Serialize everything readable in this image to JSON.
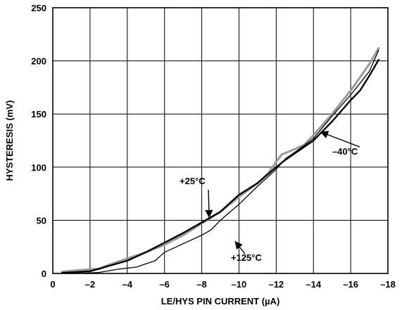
{
  "chart_data": {
    "type": "line",
    "xlabel": "LE/HYS PIN CURRENT (µA)",
    "ylabel": "HYSTERESIS (mV)",
    "xlim": [
      0,
      -18
    ],
    "ylim": [
      0,
      250
    ],
    "x_ticks": [
      0,
      -2,
      -4,
      -6,
      -8,
      -10,
      -12,
      -14,
      -16,
      -18
    ],
    "x_tick_labels": [
      "0",
      "–2",
      "–4",
      "–6",
      "–8",
      "–10",
      "–12",
      "–14",
      "–16",
      "–18"
    ],
    "y_ticks": [
      0,
      50,
      100,
      150,
      200,
      250
    ],
    "y_tick_labels": [
      "0",
      "50",
      "100",
      "150",
      "200",
      "250"
    ],
    "grid": true,
    "series": [
      {
        "name": "+25°C",
        "color": "#999999",
        "points": [
          [
            -0.5,
            1.5
          ],
          [
            -1,
            2.5
          ],
          [
            -1.7,
            3.5
          ],
          [
            -2.5,
            4.5
          ],
          [
            -3,
            8
          ],
          [
            -4,
            14
          ],
          [
            -5,
            20
          ],
          [
            -6,
            27
          ],
          [
            -7,
            36
          ],
          [
            -8,
            47
          ],
          [
            -9,
            58
          ],
          [
            -10,
            72
          ],
          [
            -11,
            85
          ],
          [
            -11.6,
            95
          ],
          [
            -12,
            105
          ],
          [
            -12.3,
            112
          ],
          [
            -13,
            117
          ],
          [
            -13.5,
            121
          ],
          [
            -14,
            130
          ],
          [
            -15,
            150
          ],
          [
            -16,
            172
          ],
          [
            -17,
            197
          ],
          [
            -17.5,
            212
          ]
        ]
      },
      {
        "name": "–40°C",
        "color": "#000000",
        "points": [
          [
            -0.5,
            0.5
          ],
          [
            -1,
            1
          ],
          [
            -2,
            2
          ],
          [
            -3,
            7
          ],
          [
            -4,
            12
          ],
          [
            -5,
            20
          ],
          [
            -6,
            29
          ],
          [
            -7,
            38
          ],
          [
            -8,
            48
          ],
          [
            -9,
            58
          ],
          [
            -10,
            74
          ],
          [
            -11,
            85
          ],
          [
            -12,
            100
          ],
          [
            -12.5,
            107
          ],
          [
            -13,
            113
          ],
          [
            -14,
            125
          ],
          [
            -15,
            143
          ],
          [
            -16,
            163
          ],
          [
            -16.5,
            172
          ],
          [
            -17,
            186
          ],
          [
            -17.5,
            201
          ]
        ]
      },
      {
        "name": "+125°C",
        "color": "#000000",
        "points": [
          [
            -0.5,
            0
          ],
          [
            -1.5,
            0
          ],
          [
            -2.5,
            1
          ],
          [
            -3.5,
            4
          ],
          [
            -4.5,
            6
          ],
          [
            -5.5,
            12
          ],
          [
            -6,
            20
          ],
          [
            -7,
            28
          ],
          [
            -8,
            36
          ],
          [
            -8.5,
            41
          ],
          [
            -9,
            50
          ],
          [
            -10,
            65
          ],
          [
            -11,
            82
          ],
          [
            -12,
            98
          ],
          [
            -12.5,
            108
          ],
          [
            -13,
            114
          ],
          [
            -14,
            127
          ],
          [
            -15,
            148
          ],
          [
            -16,
            168
          ],
          [
            -17,
            190
          ],
          [
            -17.5,
            210
          ]
        ]
      }
    ],
    "annotations": [
      {
        "text": "+25°C",
        "series": "+25°C",
        "x": -8.4,
        "y": 53
      },
      {
        "text": "–40°C",
        "series": "–40°C",
        "x": -14.4,
        "y": 133
      },
      {
        "text": "+125°C",
        "series": "+125°C",
        "x": -9.8,
        "y": 30
      }
    ]
  }
}
